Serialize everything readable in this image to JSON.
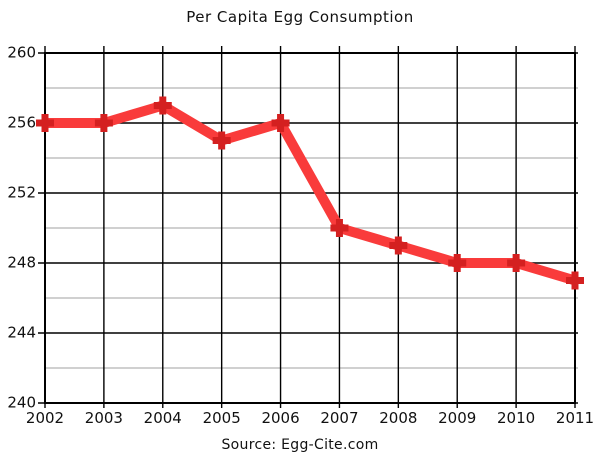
{
  "chart_data": {
    "type": "line",
    "title": "Per Capita Egg Consumption",
    "source": "Source: Egg-Cite.com",
    "categories": [
      "2002",
      "2003",
      "2004",
      "2005",
      "2006",
      "2007",
      "2008",
      "2009",
      "2010",
      "2011"
    ],
    "series": [
      {
        "name": "Per Capita Egg Consumption",
        "values": [
          256,
          256,
          257,
          255,
          256,
          250,
          249,
          248,
          248,
          247
        ]
      }
    ],
    "xlabel": "",
    "ylabel": "",
    "ylim": [
      240,
      260
    ],
    "y_major_ticks": [
      240,
      244,
      248,
      252,
      256,
      260
    ],
    "y_minor_ticks": [
      242,
      246,
      250,
      254,
      258
    ],
    "grid": "on",
    "legend_position": "none",
    "colors": {
      "line": "#f93b3b",
      "marker": "#d42020",
      "major_grid": "#000000",
      "minor_grid": "#b3b3b3",
      "text": "#111111",
      "background": "#ffffff"
    },
    "marker_shape": "plus"
  }
}
